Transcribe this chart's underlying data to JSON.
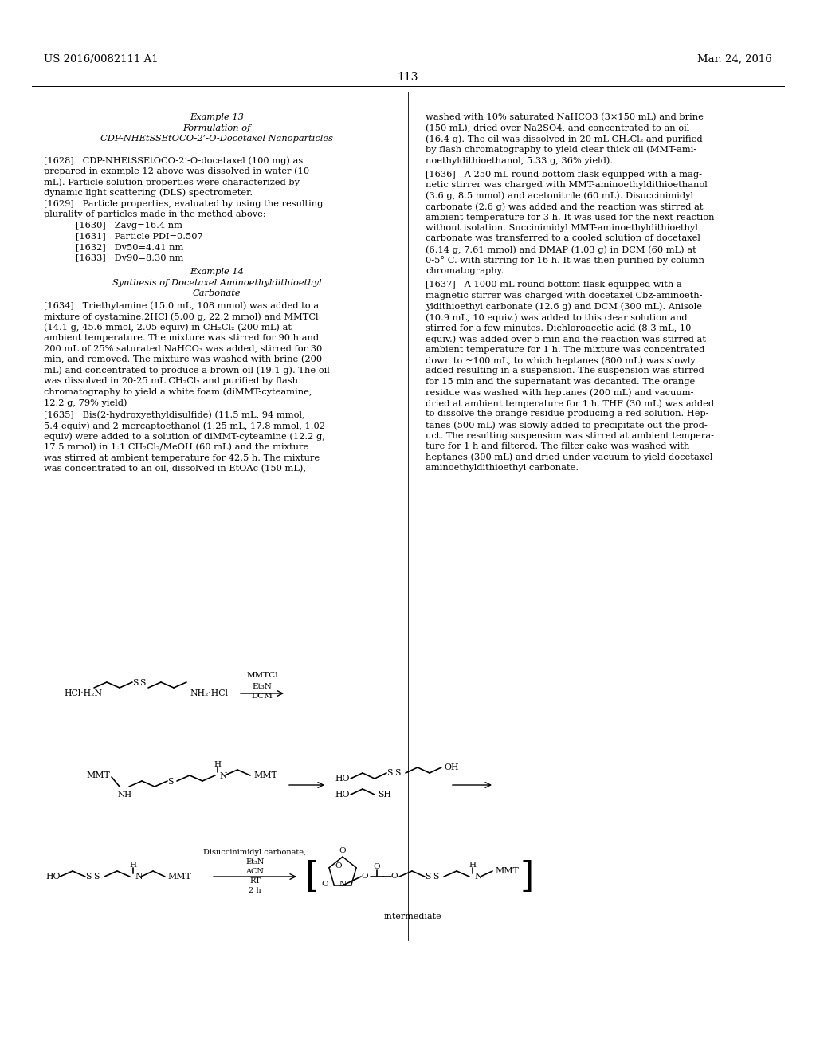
{
  "page_number": "113",
  "patent_number": "US 2016/0082111 A1",
  "patent_date": "Mar. 24, 2016",
  "background_color": "#ffffff",
  "text_color": "#000000",
  "figsize": [
    10.24,
    13.2
  ],
  "dpi": 100
}
